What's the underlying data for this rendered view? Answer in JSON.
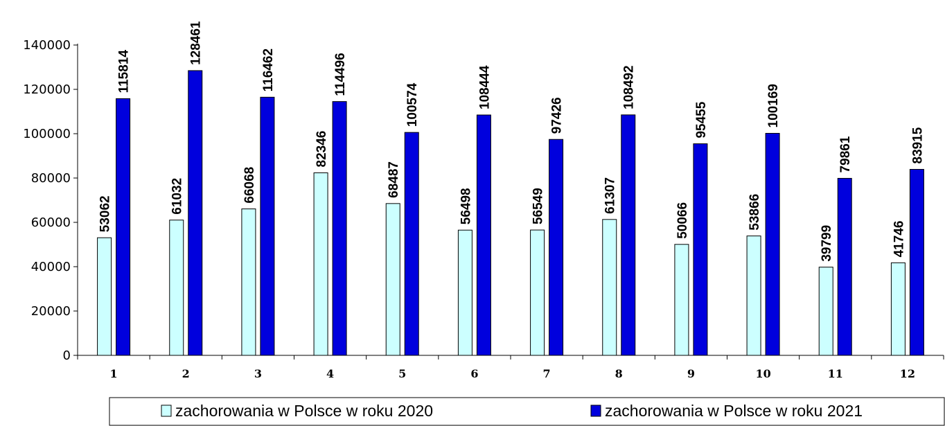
{
  "chart_data": {
    "type": "bar",
    "categories": [
      "1",
      "2",
      "3",
      "4",
      "5",
      "6",
      "7",
      "8",
      "9",
      "10",
      "11",
      "12"
    ],
    "series": [
      {
        "name": "zachorowania w Polsce w roku 2020",
        "values": [
          53062,
          61032,
          66068,
          82346,
          68487,
          56498,
          56549,
          61307,
          50066,
          53866,
          39799,
          41746
        ],
        "color": "#ccffff"
      },
      {
        "name": "zachorowania w Polsce w roku 2021",
        "values": [
          115814,
          128461,
          116462,
          114496,
          100574,
          108444,
          97426,
          108492,
          95455,
          100169,
          79861,
          83915
        ],
        "color": "#0000dd"
      }
    ],
    "yticks": [
      "0",
      "20000",
      "40000",
      "60000",
      "80000",
      "100000",
      "120000",
      "140000"
    ],
    "ylim": [
      0,
      140000
    ],
    "grid": false,
    "legend_position": "bottom",
    "data_labels": true
  }
}
